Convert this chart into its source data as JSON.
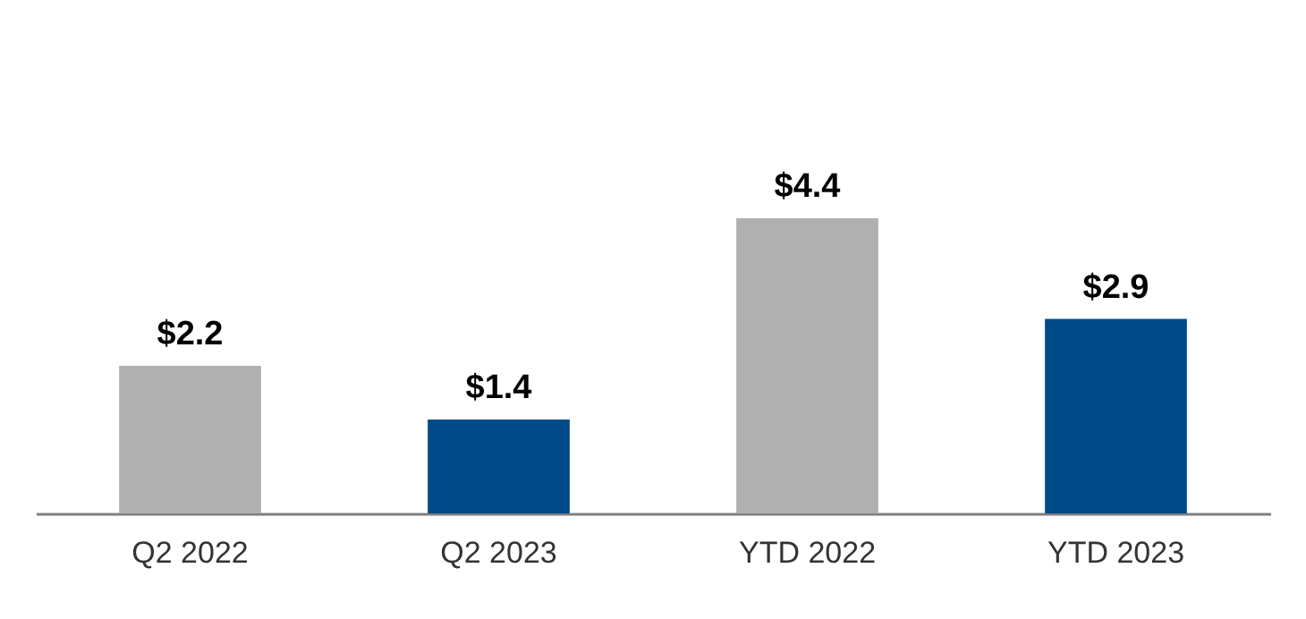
{
  "chart_data": {
    "type": "bar",
    "categories": [
      "Q2 2022",
      "Q2 2023",
      "YTD 2022",
      "YTD 2023"
    ],
    "values": [
      2.2,
      1.4,
      4.4,
      2.9
    ],
    "colors": [
      "#b0b0b0",
      "#004a87",
      "#b0b0b0",
      "#004a87"
    ],
    "value_labels": [
      "$2.2",
      "$1.4",
      "$4.4",
      "$2.9"
    ],
    "tick_labels": "x"
  }
}
